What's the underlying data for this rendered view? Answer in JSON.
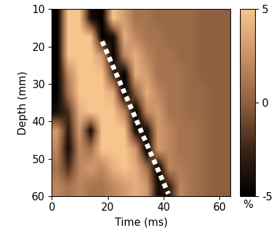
{
  "chart_data": {
    "type": "heatmap",
    "xlabel": "Time (ms)",
    "ylabel": "Depth (mm)",
    "x": [
      2,
      6,
      10,
      14,
      18,
      22,
      26,
      30,
      34,
      38,
      42,
      46,
      50,
      54,
      58,
      62
    ],
    "y": [
      12.5,
      17.5,
      22.5,
      27.5,
      32.5,
      37.5,
      42.5,
      47.5,
      52.5,
      57.5
    ],
    "cells": [
      [
        -5,
        5,
        5,
        -4,
        -5,
        5,
        3,
        1,
        1,
        0.5,
        0.5,
        0.5,
        0.5,
        0,
        0,
        0
      ],
      [
        -5,
        5,
        5,
        5,
        -5,
        -4,
        4,
        2,
        1,
        1,
        0.5,
        0.5,
        0.5,
        0,
        0,
        0
      ],
      [
        -5,
        5,
        5,
        5,
        3,
        -5,
        2,
        4,
        2,
        1,
        1,
        0.5,
        0.5,
        0,
        0,
        0
      ],
      [
        -5,
        2,
        5,
        5,
        5,
        -2,
        -5,
        4,
        3,
        1,
        1,
        1,
        0.5,
        0,
        0,
        0
      ],
      [
        -5,
        1,
        5,
        5,
        5,
        4,
        -5,
        0,
        4,
        2,
        1,
        1,
        0.5,
        0.5,
        0,
        0
      ],
      [
        -4,
        -2,
        4,
        5,
        5,
        5,
        2,
        -5,
        2,
        3,
        1,
        1,
        0.5,
        0.5,
        0,
        0
      ],
      [
        3,
        -3,
        3,
        -4,
        5,
        5,
        5,
        -4,
        -4,
        3,
        2,
        1,
        1,
        0.5,
        0,
        0
      ],
      [
        2,
        -4,
        2,
        1,
        5,
        5,
        5,
        3,
        -5,
        3,
        2,
        1,
        1,
        0.5,
        0,
        0
      ],
      [
        1,
        -2,
        2,
        3,
        2,
        4,
        5,
        4,
        1,
        -5,
        2,
        1.5,
        1,
        0.5,
        0,
        0
      ],
      [
        2,
        1,
        2,
        1,
        1,
        2,
        3,
        4,
        3,
        -4,
        -3,
        2,
        1,
        0.5,
        0,
        0
      ]
    ],
    "xlim": [
      0,
      64
    ],
    "xticks": [
      0,
      20,
      40,
      60
    ],
    "ylim": [
      60,
      10
    ],
    "yticks": [
      10,
      20,
      30,
      40,
      50,
      60
    ],
    "colorbar": {
      "range": [
        -5,
        5
      ],
      "ticks": [
        -5,
        0,
        5
      ],
      "label": "%"
    },
    "dotted_line": {
      "x": [
        18,
        41.7
      ],
      "y": [
        18.6,
        59.4
      ],
      "color": "#ffffff"
    }
  }
}
